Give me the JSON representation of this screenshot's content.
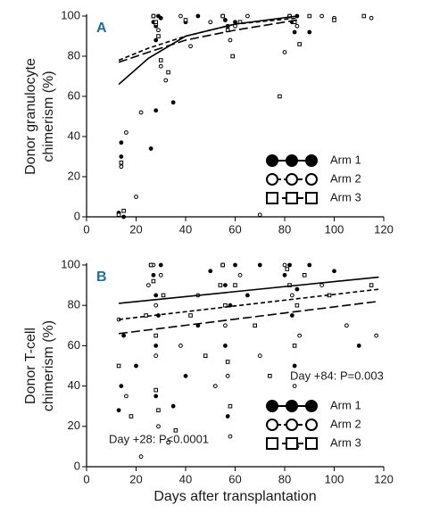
{
  "chart_data": [
    {
      "type": "scatter",
      "panel_label": "A",
      "ylabel": [
        "Donor granulocyte",
        "chimerism (%)"
      ],
      "xlim": [
        0,
        120
      ],
      "ylim": [
        0,
        100
      ],
      "xticks": [
        0,
        20,
        40,
        60,
        80,
        100,
        120
      ],
      "yticks": [
        0,
        20,
        40,
        60,
        80,
        100
      ],
      "series": [
        {
          "name": "Arm 1",
          "marker": "filled-circle",
          "dash": "solid",
          "color": "#000000",
          "x": [
            13,
            14,
            14,
            15,
            27,
            27,
            28,
            28,
            29,
            30,
            35,
            40,
            45,
            55,
            56,
            57,
            60,
            82,
            83,
            84,
            85,
            90,
            28,
            26
          ],
          "y": [
            2,
            30,
            37,
            0,
            100,
            97,
            95,
            88,
            100,
            99,
            57,
            97,
            100,
            100,
            98,
            95,
            97,
            100,
            97,
            92,
            100,
            92,
            53,
            34
          ],
          "fit": {
            "x": [
              13,
              25,
              40,
              60,
              85
            ],
            "y": [
              66,
              79,
              90,
              96,
              100
            ]
          }
        },
        {
          "name": "Arm 2",
          "marker": "open-circle",
          "dash": "short-dash",
          "color": "#000000",
          "x": [
            14,
            16,
            20,
            22,
            27,
            28,
            29,
            30,
            32,
            38,
            42,
            50,
            55,
            58,
            60,
            65,
            70,
            80,
            82,
            85,
            95,
            100,
            115
          ],
          "y": [
            25,
            42,
            10,
            52,
            100,
            96,
            93,
            75,
            68,
            100,
            85,
            97,
            100,
            88,
            95,
            100,
            1,
            82,
            100,
            95,
            100,
            99,
            99
          ],
          "fit": {
            "x": [
              13,
              25,
              40,
              60,
              85
            ],
            "y": [
              78,
              84,
              90,
              96,
              99
            ]
          }
        },
        {
          "name": "Arm 3",
          "marker": "open-square",
          "dash": "long-dash",
          "color": "#000000",
          "x": [
            13,
            14,
            15,
            27,
            28,
            29,
            30,
            33,
            40,
            55,
            57,
            59,
            62,
            78,
            82,
            84,
            86,
            90,
            100,
            112
          ],
          "y": [
            1,
            27,
            3,
            100,
            97,
            90,
            78,
            72,
            98,
            100,
            93,
            80,
            97,
            60,
            100,
            97,
            86,
            100,
            98,
            100
          ],
          "fit": {
            "x": [
              13,
              25,
              40,
              60,
              85
            ],
            "y": [
              77,
              82,
              88,
              93,
              98
            ]
          }
        }
      ]
    },
    {
      "type": "scatter",
      "panel_label": "B",
      "ylabel": [
        "Donor T-cell",
        "chimerism (%)"
      ],
      "xlabel": "Days after transplantation",
      "xlim": [
        0,
        120
      ],
      "ylim": [
        0,
        100
      ],
      "xticks": [
        0,
        20,
        40,
        60,
        80,
        100,
        120
      ],
      "yticks": [
        0,
        20,
        40,
        60,
        80,
        100
      ],
      "annotations": [
        "Day +84: P=0.003",
        "Day +28: P<0.0001"
      ],
      "series": [
        {
          "name": "Arm 1",
          "marker": "filled-circle",
          "dash": "solid",
          "color": "#000000",
          "x": [
            13,
            14,
            15,
            20,
            26,
            27,
            28,
            28,
            28,
            29,
            30,
            35,
            40,
            45,
            50,
            55,
            56,
            56,
            57,
            58,
            60,
            65,
            70,
            80,
            82,
            83,
            84,
            84,
            85,
            90,
            100,
            110
          ],
          "y": [
            28,
            40,
            65,
            50,
            100,
            95,
            85,
            60,
            35,
            75,
            100,
            30,
            45,
            70,
            97,
            100,
            90,
            60,
            25,
            80,
            100,
            85,
            100,
            95,
            100,
            75,
            50,
            20,
            88,
            100,
            97,
            60
          ],
          "fit": {
            "x": [
              13,
              118
            ],
            "y": [
              81,
              94
            ]
          }
        },
        {
          "name": "Arm 2",
          "marker": "open-circle",
          "dash": "short-dash",
          "color": "#000000",
          "x": [
            13,
            16,
            22,
            25,
            27,
            28,
            28,
            29,
            30,
            33,
            38,
            45,
            52,
            55,
            56,
            57,
            58,
            62,
            70,
            75,
            80,
            83,
            84,
            85,
            86,
            95,
            105,
            117
          ],
          "y": [
            73,
            35,
            5,
            90,
            100,
            80,
            55,
            20,
            95,
            12,
            60,
            85,
            40,
            100,
            70,
            45,
            15,
            95,
            55,
            30,
            100,
            85,
            40,
            10,
            65,
            90,
            70,
            65
          ],
          "fit": {
            "x": [
              13,
              118
            ],
            "y": [
              73,
              88
            ]
          }
        },
        {
          "name": "Arm 3",
          "marker": "open-square",
          "dash": "long-dash",
          "color": "#000000",
          "x": [
            13,
            18,
            24,
            26,
            27,
            28,
            28,
            29,
            31,
            36,
            42,
            48,
            54,
            55,
            56,
            57,
            58,
            60,
            68,
            74,
            81,
            82,
            84,
            84,
            85,
            88,
            98,
            115
          ],
          "y": [
            50,
            25,
            75,
            100,
            92,
            65,
            38,
            28,
            85,
            18,
            75,
            55,
            90,
            100,
            80,
            52,
            30,
            90,
            70,
            45,
            98,
            90,
            60,
            30,
            80,
            95,
            85,
            90
          ],
          "fit": {
            "x": [
              13,
              118
            ],
            "y": [
              66,
              82
            ]
          }
        }
      ]
    }
  ]
}
